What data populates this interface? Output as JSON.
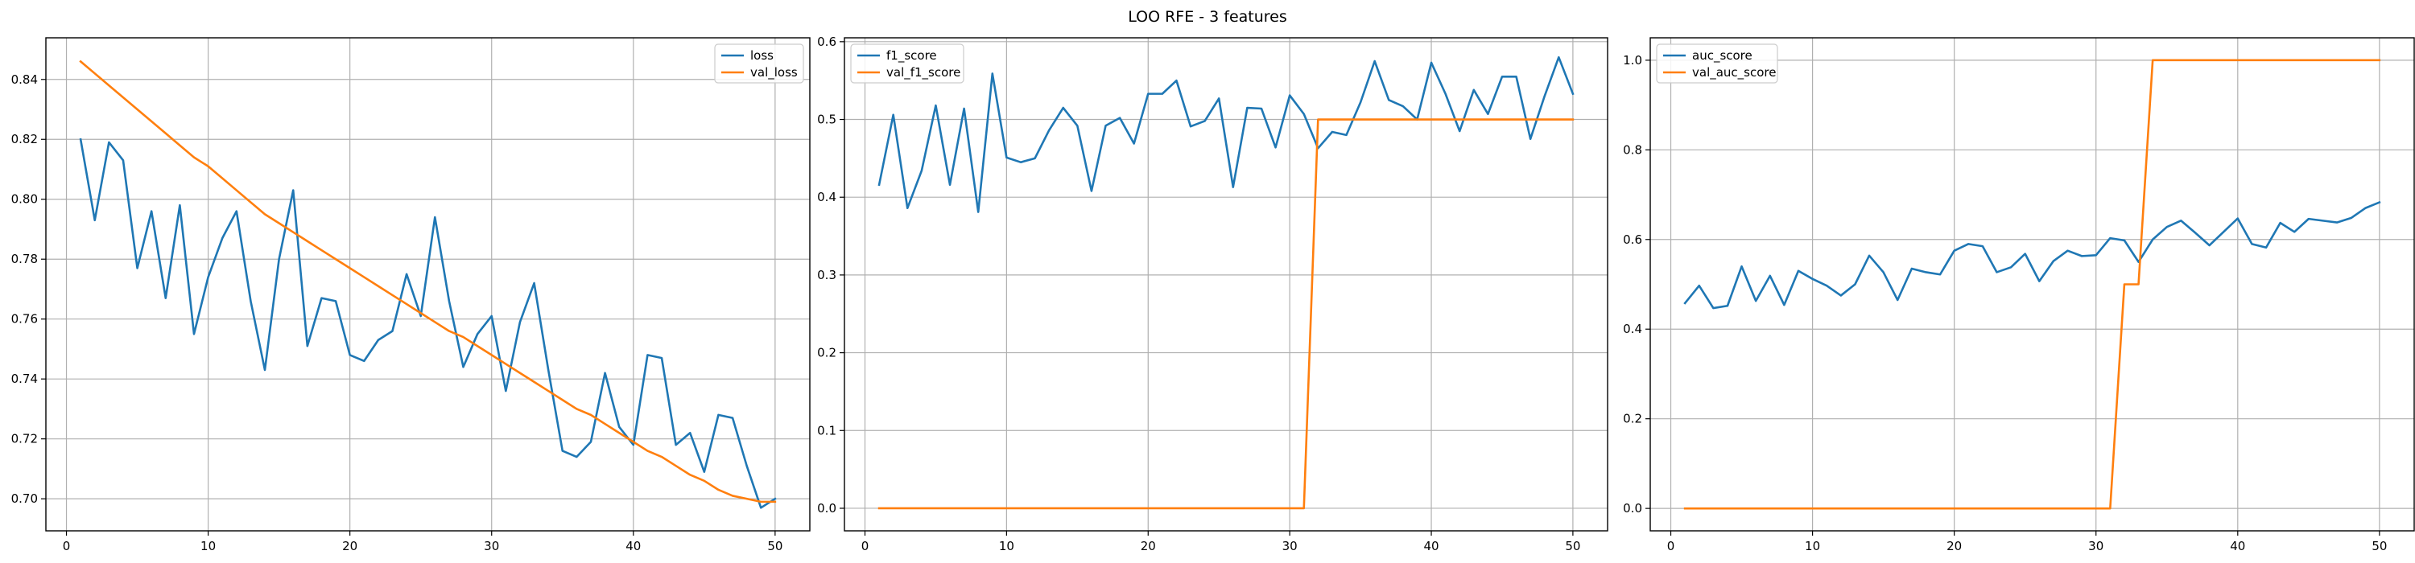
{
  "figure": {
    "title": "LOO RFE - 3 features"
  },
  "colors": {
    "blue": "#1f77b4",
    "orange": "#ff7f0e",
    "grid": "#b0b0b0",
    "axis": "#000000"
  },
  "chart_data": [
    {
      "type": "line",
      "title": "",
      "xlabel": "",
      "ylabel": "",
      "xlim": [
        -1.45,
        52.45
      ],
      "ylim": [
        0.6893,
        0.8539
      ],
      "xticks": [
        0,
        10,
        20,
        30,
        40,
        50
      ],
      "yticks": [
        0.7,
        0.72,
        0.74,
        0.76,
        0.78,
        0.8,
        0.82,
        0.84
      ],
      "ytick_labels": [
        "0.70",
        "0.72",
        "0.74",
        "0.76",
        "0.78",
        "0.80",
        "0.82",
        "0.84"
      ],
      "grid": true,
      "legend_position": "upper-right",
      "x": [
        1,
        2,
        3,
        4,
        5,
        6,
        7,
        8,
        9,
        10,
        11,
        12,
        13,
        14,
        15,
        16,
        17,
        18,
        19,
        20,
        21,
        22,
        23,
        24,
        25,
        26,
        27,
        28,
        29,
        30,
        31,
        32,
        33,
        34,
        35,
        36,
        37,
        38,
        39,
        40,
        41,
        42,
        43,
        44,
        45,
        46,
        47,
        48,
        49,
        50
      ],
      "series": [
        {
          "name": "loss",
          "color": "#1f77b4",
          "values": [
            0.82,
            0.793,
            0.819,
            0.813,
            0.777,
            0.796,
            0.767,
            0.798,
            0.755,
            0.774,
            0.787,
            0.796,
            0.766,
            0.743,
            0.78,
            0.803,
            0.751,
            0.767,
            0.766,
            0.748,
            0.746,
            0.753,
            0.756,
            0.775,
            0.761,
            0.794,
            0.766,
            0.744,
            0.755,
            0.761,
            0.736,
            0.759,
            0.772,
            0.743,
            0.716,
            0.714,
            0.719,
            0.742,
            0.724,
            0.718,
            0.748,
            0.747,
            0.718,
            0.722,
            0.709,
            0.728,
            0.727,
            0.711,
            0.697,
            0.7
          ]
        },
        {
          "name": "val_loss",
          "color": "#ff7f0e",
          "values": [
            0.846,
            0.842,
            0.838,
            0.834,
            0.83,
            0.826,
            0.822,
            0.818,
            0.814,
            0.811,
            0.807,
            0.803,
            0.799,
            0.795,
            0.792,
            0.789,
            0.786,
            0.783,
            0.78,
            0.777,
            0.774,
            0.771,
            0.768,
            0.765,
            0.762,
            0.759,
            0.756,
            0.754,
            0.751,
            0.748,
            0.745,
            0.742,
            0.739,
            0.736,
            0.733,
            0.73,
            0.728,
            0.725,
            0.722,
            0.719,
            0.716,
            0.714,
            0.711,
            0.708,
            0.706,
            0.703,
            0.701,
            0.7,
            0.699,
            0.699
          ]
        }
      ]
    },
    {
      "type": "line",
      "title": "",
      "xlabel": "",
      "ylabel": "",
      "xlim": [
        -1.45,
        52.45
      ],
      "ylim": [
        -0.029,
        0.605
      ],
      "xticks": [
        0,
        10,
        20,
        30,
        40,
        50
      ],
      "yticks": [
        0.0,
        0.1,
        0.2,
        0.3,
        0.4,
        0.5,
        0.6
      ],
      "ytick_labels": [
        "0.0",
        "0.1",
        "0.2",
        "0.3",
        "0.4",
        "0.5",
        "0.6"
      ],
      "grid": true,
      "legend_position": "upper-left",
      "x": [
        1,
        2,
        3,
        4,
        5,
        6,
        7,
        8,
        9,
        10,
        11,
        12,
        13,
        14,
        15,
        16,
        17,
        18,
        19,
        20,
        21,
        22,
        23,
        24,
        25,
        26,
        27,
        28,
        29,
        30,
        31,
        32,
        33,
        34,
        35,
        36,
        37,
        38,
        39,
        40,
        41,
        42,
        43,
        44,
        45,
        46,
        47,
        48,
        49,
        50
      ],
      "series": [
        {
          "name": "f1_score",
          "color": "#1f77b4",
          "values": [
            0.416,
            0.506,
            0.386,
            0.434,
            0.518,
            0.416,
            0.514,
            0.381,
            0.559,
            0.451,
            0.445,
            0.45,
            0.486,
            0.515,
            0.492,
            0.408,
            0.492,
            0.502,
            0.469,
            0.533,
            0.533,
            0.55,
            0.491,
            0.498,
            0.527,
            0.413,
            0.515,
            0.514,
            0.464,
            0.531,
            0.507,
            0.463,
            0.484,
            0.48,
            0.522,
            0.575,
            0.525,
            0.517,
            0.5,
            0.573,
            0.533,
            0.485,
            0.538,
            0.507,
            0.555,
            0.555,
            0.475,
            0.53,
            0.58,
            0.533
          ]
        },
        {
          "name": "val_f1_score",
          "color": "#ff7f0e",
          "values": [
            0,
            0,
            0,
            0,
            0,
            0,
            0,
            0,
            0,
            0,
            0,
            0,
            0,
            0,
            0,
            0,
            0,
            0,
            0,
            0,
            0,
            0,
            0,
            0,
            0,
            0,
            0,
            0,
            0,
            0,
            0,
            0.5,
            0.5,
            0.5,
            0.5,
            0.5,
            0.5,
            0.5,
            0.5,
            0.5,
            0.5,
            0.5,
            0.5,
            0.5,
            0.5,
            0.5,
            0.5,
            0.5,
            0.5,
            0.5
          ]
        }
      ]
    },
    {
      "type": "line",
      "title": "",
      "xlabel": "",
      "ylabel": "",
      "xlim": [
        -1.45,
        52.45
      ],
      "ylim": [
        -0.05,
        1.05
      ],
      "xticks": [
        0,
        10,
        20,
        30,
        40,
        50
      ],
      "yticks": [
        0.0,
        0.2,
        0.4,
        0.6,
        0.8,
        1.0
      ],
      "ytick_labels": [
        "0.0",
        "0.2",
        "0.4",
        "0.6",
        "0.8",
        "1.0"
      ],
      "grid": true,
      "legend_position": "upper-left",
      "x": [
        1,
        2,
        3,
        4,
        5,
        6,
        7,
        8,
        9,
        10,
        11,
        12,
        13,
        14,
        15,
        16,
        17,
        18,
        19,
        20,
        21,
        22,
        23,
        24,
        25,
        26,
        27,
        28,
        29,
        30,
        31,
        32,
        33,
        34,
        35,
        36,
        37,
        38,
        39,
        40,
        41,
        42,
        43,
        44,
        45,
        46,
        47,
        48,
        49,
        50
      ],
      "series": [
        {
          "name": "auc_score",
          "color": "#1f77b4",
          "values": [
            0.458,
            0.497,
            0.447,
            0.452,
            0.54,
            0.463,
            0.519,
            0.454,
            0.53,
            0.512,
            0.497,
            0.475,
            0.5,
            0.564,
            0.527,
            0.465,
            0.535,
            0.527,
            0.522,
            0.575,
            0.59,
            0.585,
            0.527,
            0.538,
            0.568,
            0.507,
            0.552,
            0.575,
            0.563,
            0.565,
            0.603,
            0.598,
            0.55,
            0.6,
            0.628,
            0.642,
            0.615,
            0.587,
            0.617,
            0.647,
            0.59,
            0.582,
            0.637,
            0.617,
            0.646,
            0.642,
            0.638,
            0.648,
            0.67,
            0.683
          ]
        },
        {
          "name": "val_auc_score",
          "color": "#ff7f0e",
          "values": [
            0,
            0,
            0,
            0,
            0,
            0,
            0,
            0,
            0,
            0,
            0,
            0,
            0,
            0,
            0,
            0,
            0,
            0,
            0,
            0,
            0,
            0,
            0,
            0,
            0,
            0,
            0,
            0,
            0,
            0,
            0,
            0.5,
            0.5,
            1,
            1,
            1,
            1,
            1,
            1,
            1,
            1,
            1,
            1,
            1,
            1,
            1,
            1,
            1,
            1,
            1
          ]
        }
      ]
    }
  ]
}
